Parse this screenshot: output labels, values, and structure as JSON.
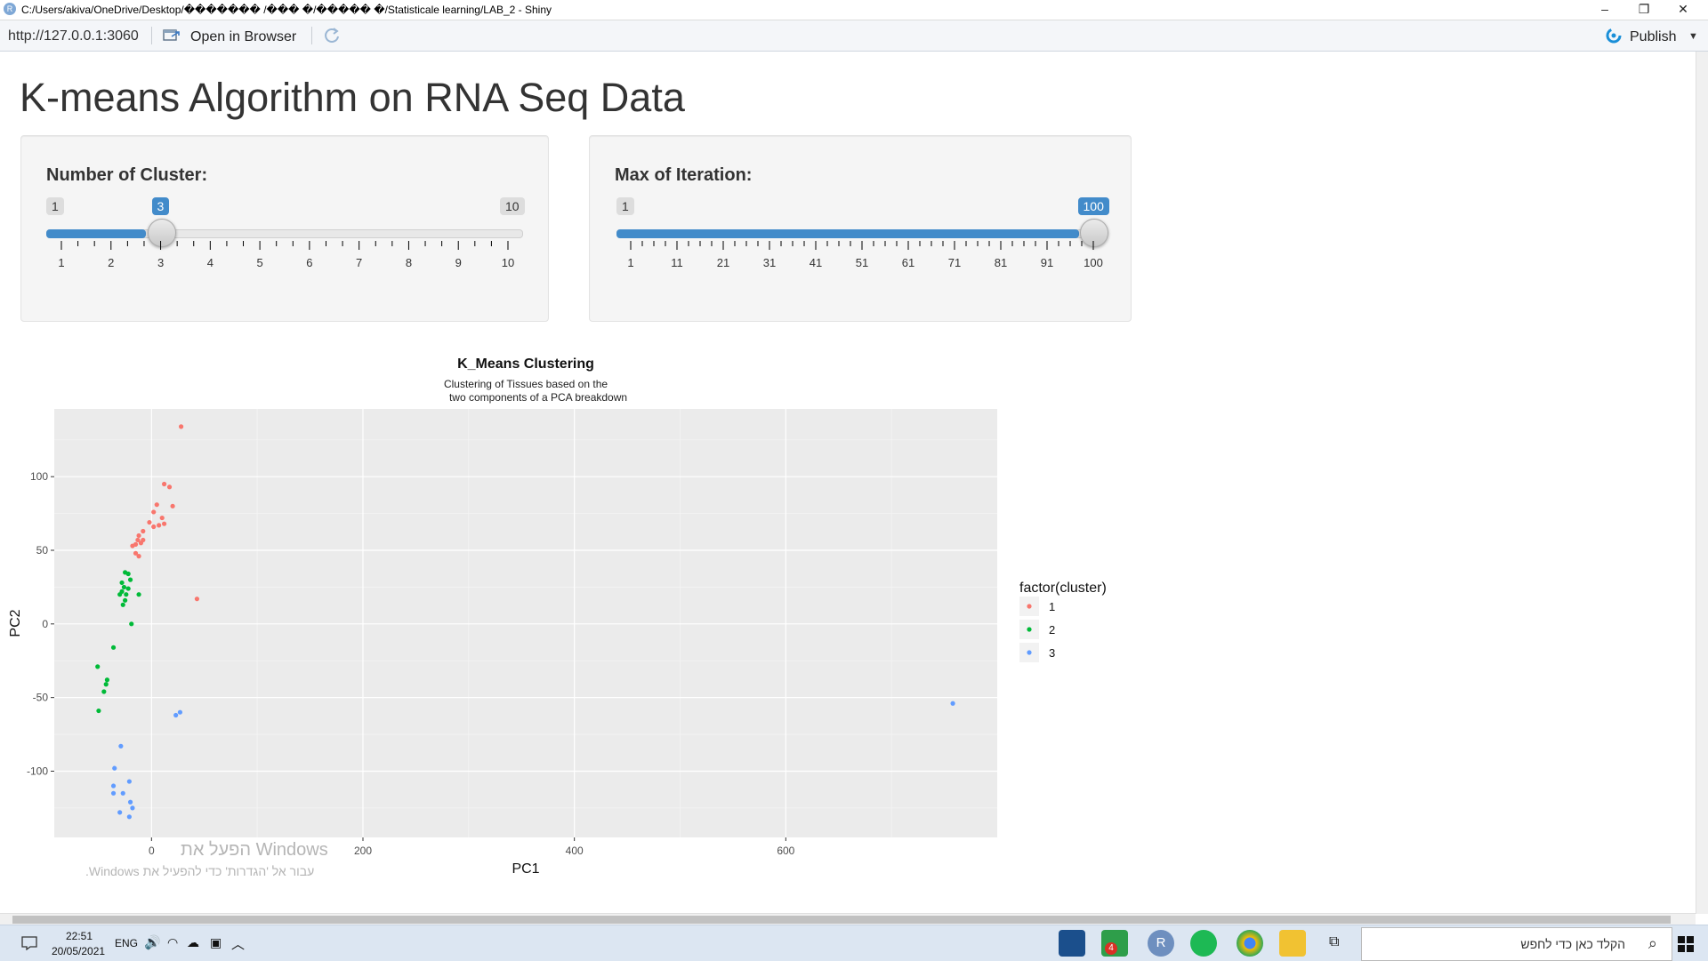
{
  "window": {
    "title": "C:/Users/akiva/OneDrive/Desktop/������� /��� �/����� �/Statisticale learning/LAB_2 - Shiny",
    "app_icon": "R",
    "controls": [
      "–",
      "❐",
      "✕"
    ]
  },
  "toolbar": {
    "url": "http://127.0.0.1:3060",
    "open_label": "Open in Browser",
    "publish_label": "Publish",
    "accent": "#1a8fd8"
  },
  "page": {
    "title": "K-means Algorithm on RNA Seq Data"
  },
  "slider_clusters": {
    "label": "Number of Cluster:",
    "min": "1",
    "max": "10",
    "value": "3",
    "value_fraction": 0.2222,
    "ticks": [
      "1",
      "2",
      "3",
      "4",
      "5",
      "6",
      "7",
      "8",
      "9",
      "10"
    ],
    "accent": "#428bca"
  },
  "slider_iterations": {
    "label": "Max of Iteration:",
    "min": "1",
    "max": "100",
    "value": "100",
    "value_fraction": 1.0,
    "ticks": [
      "1",
      "11",
      "21",
      "31",
      "41",
      "51",
      "61",
      "71",
      "81",
      "91",
      "100"
    ],
    "accent": "#428bca"
  },
  "chart_data": {
    "type": "scatter",
    "title": "K_Means Clustering",
    "subtitle": [
      "Clustering of Tissues based on the",
      "two components of a PCA breakdown"
    ],
    "xlabel": "PC1",
    "ylabel": "PC2",
    "xlim": [
      -92,
      800
    ],
    "ylim": [
      -145,
      146
    ],
    "xticks": [
      "0",
      "200",
      "400",
      "600"
    ],
    "xtick_values": [
      0,
      200,
      400,
      600
    ],
    "yticks": [
      "-100",
      "-50",
      "0",
      "50",
      "100"
    ],
    "ytick_values": [
      -100,
      -50,
      0,
      50,
      100
    ],
    "grid": true,
    "legend_title": "factor(cluster)",
    "legend_position": "right",
    "series": [
      {
        "name": "1",
        "color": "#F8766D",
        "points": [
          [
            28,
            134
          ],
          [
            12,
            95
          ],
          [
            17,
            93
          ],
          [
            20,
            80
          ],
          [
            5,
            81
          ],
          [
            2,
            76
          ],
          [
            10,
            72
          ],
          [
            12,
            68
          ],
          [
            7,
            67
          ],
          [
            2,
            66
          ],
          [
            -2,
            69
          ],
          [
            -8,
            63
          ],
          [
            -12,
            60
          ],
          [
            -8,
            57
          ],
          [
            -13,
            57
          ],
          [
            -10,
            55
          ],
          [
            -15,
            54
          ],
          [
            -18,
            53
          ],
          [
            -15,
            48
          ],
          [
            -12,
            46
          ],
          [
            43,
            17
          ]
        ]
      },
      {
        "name": "2",
        "color": "#00BA38",
        "points": [
          [
            -25,
            35
          ],
          [
            -22,
            34
          ],
          [
            -20,
            30
          ],
          [
            -28,
            28
          ],
          [
            -26,
            25
          ],
          [
            -22,
            24
          ],
          [
            -28,
            22
          ],
          [
            -24,
            20
          ],
          [
            -30,
            20
          ],
          [
            -12,
            20
          ],
          [
            -25,
            16
          ],
          [
            -27,
            13
          ],
          [
            -19,
            0
          ],
          [
            -36,
            -16
          ],
          [
            -42,
            -38
          ],
          [
            -43,
            -41
          ],
          [
            -45,
            -46
          ],
          [
            -51,
            -29
          ],
          [
            -50,
            -59
          ]
        ]
      },
      {
        "name": "3",
        "color": "#619CFF",
        "points": [
          [
            -29,
            -83
          ],
          [
            -35,
            -98
          ],
          [
            -21,
            -107
          ],
          [
            -36,
            -110
          ],
          [
            -36,
            -115
          ],
          [
            -27,
            -115
          ],
          [
            -20,
            -121
          ],
          [
            -18,
            -125
          ],
          [
            -30,
            -128
          ],
          [
            -21,
            -131
          ],
          [
            27,
            -60
          ],
          [
            23,
            -62
          ],
          [
            758,
            -54
          ]
        ]
      }
    ]
  },
  "watermark": {
    "line1": "הפעל את Windows",
    "line2": "עבור אל 'הגדרות' כדי להפעיל את Windows."
  },
  "taskbar": {
    "time": "22:51",
    "date": "20/05/2021",
    "lang": "ENG",
    "search_placeholder": "הקלד כאן כדי לחפש",
    "badge_count": "4"
  }
}
